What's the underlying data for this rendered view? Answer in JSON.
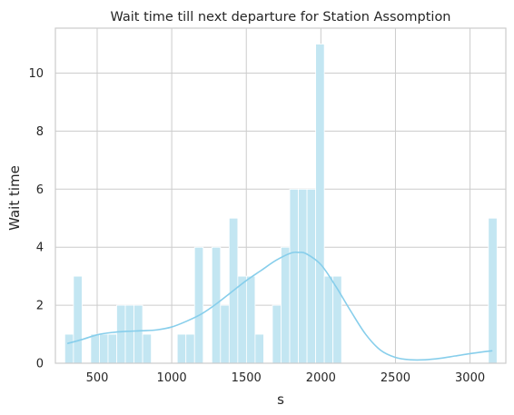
{
  "chart_data": {
    "type": "bar",
    "title": "Wait time till next departure for Station Assomption",
    "xlabel": "s",
    "ylabel": "Wait time",
    "xlim": [
      220,
      3240
    ],
    "ylim": [
      0,
      11.55
    ],
    "xticks": [
      500,
      1000,
      1500,
      2000,
      2500,
      3000
    ],
    "yticks": [
      0,
      2,
      4,
      6,
      8,
      10
    ],
    "grid": true,
    "bin_width": 58,
    "bins": [
      {
        "x": 312,
        "value": 1
      },
      {
        "x": 370,
        "value": 3
      },
      {
        "x": 486,
        "value": 1
      },
      {
        "x": 544,
        "value": 1
      },
      {
        "x": 602,
        "value": 1
      },
      {
        "x": 660,
        "value": 2
      },
      {
        "x": 718,
        "value": 2
      },
      {
        "x": 776,
        "value": 2
      },
      {
        "x": 834,
        "value": 1
      },
      {
        "x": 1066,
        "value": 1
      },
      {
        "x": 1124,
        "value": 1
      },
      {
        "x": 1182,
        "value": 4
      },
      {
        "x": 1298,
        "value": 4
      },
      {
        "x": 1356,
        "value": 2
      },
      {
        "x": 1414,
        "value": 5
      },
      {
        "x": 1472,
        "value": 3
      },
      {
        "x": 1530,
        "value": 3
      },
      {
        "x": 1588,
        "value": 1
      },
      {
        "x": 1704,
        "value": 2
      },
      {
        "x": 1762,
        "value": 4
      },
      {
        "x": 1820,
        "value": 6
      },
      {
        "x": 1878,
        "value": 6
      },
      {
        "x": 1936,
        "value": 6
      },
      {
        "x": 1994,
        "value": 11
      },
      {
        "x": 2052,
        "value": 3
      },
      {
        "x": 2110,
        "value": 3
      },
      {
        "x": 3152,
        "value": 5
      }
    ],
    "kde": {
      "x": [
        300,
        400,
        500,
        600,
        700,
        800,
        900,
        1000,
        1100,
        1200,
        1300,
        1400,
        1500,
        1600,
        1700,
        1800,
        1850,
        1900,
        2000,
        2100,
        2200,
        2300,
        2400,
        2500,
        2600,
        2700,
        2800,
        2900,
        3000,
        3100,
        3150
      ],
      "y": [
        0.68,
        0.82,
        0.98,
        1.06,
        1.1,
        1.12,
        1.15,
        1.25,
        1.45,
        1.7,
        2.05,
        2.45,
        2.85,
        3.2,
        3.55,
        3.8,
        3.82,
        3.78,
        3.4,
        2.65,
        1.8,
        1.0,
        0.45,
        0.2,
        0.12,
        0.12,
        0.17,
        0.25,
        0.33,
        0.4,
        0.43
      ]
    },
    "colors": {
      "bar_fill": "#c3e6f2",
      "bar_edge": "#ffffff",
      "kde_line": "#87ceeb",
      "grid": "#cccccc",
      "frame": "#cccccc",
      "text": "#262626"
    }
  }
}
